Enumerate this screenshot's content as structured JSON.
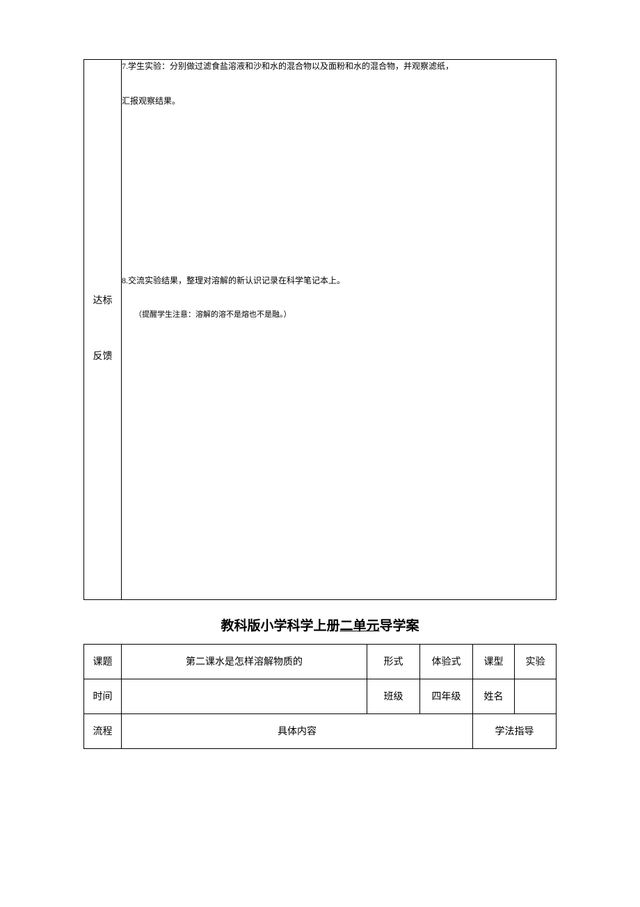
{
  "table1": {
    "label_top": "达标",
    "label_bottom": "反馈",
    "line7": "7.学生实验：分别做过滤食盐溶液和沙和水的混合物以及面粉和水的混合物，并观察滤纸，",
    "line7b": "汇报观察结果。",
    "line8": "8.交流实验结果，整理对溶解的新认识记录在科学笔记本上。",
    "line8b": "（提醒学生注意：溶解的溶不是熔也不是融。）"
  },
  "title": {
    "prefix": "教科版小学科学上册",
    "underline": "二单元",
    "suffix": "导学案"
  },
  "table2": {
    "r1c1": "课题",
    "r1c2": "第二课水是怎样溶解物质的",
    "r1c3": "形式",
    "r1c4": "体验式",
    "r1c5": "课型",
    "r1c6": "实验",
    "r2c1": "时间",
    "r2c2": "",
    "r2c3": "班级",
    "r2c4": "四年级",
    "r2c5": "姓名",
    "r2c6": "",
    "r3c1": "流程",
    "r3c2": "具体内容",
    "r3c3": "学法指导"
  },
  "colors": {
    "border": "#000000",
    "text": "#000000",
    "background": "#ffffff"
  }
}
